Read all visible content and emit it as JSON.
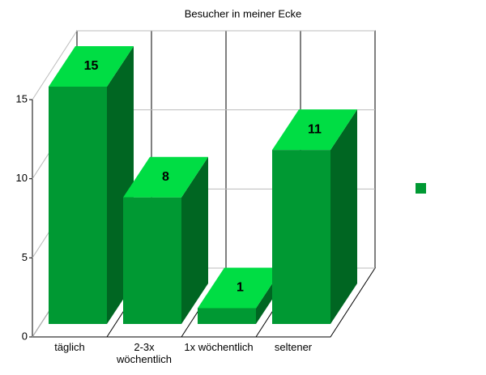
{
  "chart_data": {
    "type": "bar3d",
    "title": "Besucher in meiner Ecke",
    "categories": [
      "täglich",
      "2-3x wöchentlich",
      "1x wöchentlich",
      "seltener"
    ],
    "values": [
      15,
      8,
      1,
      11
    ],
    "color": "#009933",
    "ylim": [
      0,
      15
    ],
    "yticks": [
      0,
      5,
      10,
      15
    ],
    "grid": true
  }
}
